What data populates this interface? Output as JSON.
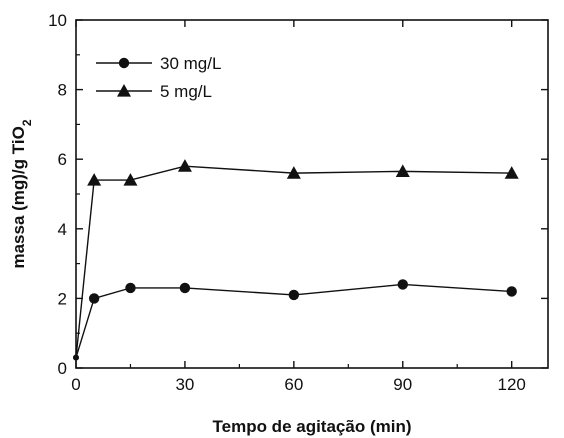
{
  "chart_data": {
    "type": "line",
    "xlabel": "Tempo de agitação (min)",
    "ylabel_main": "massa (mg)/g TiO",
    "ylabel_sub": "2",
    "xlim": [
      0,
      130
    ],
    "ylim": [
      0,
      10
    ],
    "xticks": [
      0,
      30,
      60,
      90,
      120
    ],
    "yticks": [
      0,
      2,
      4,
      6,
      8,
      10
    ],
    "legend_position": "top-left",
    "series": [
      {
        "name": "30 mg/L",
        "marker": "circle",
        "x": [
          0,
          5,
          15,
          30,
          60,
          90,
          120
        ],
        "y": [
          0.3,
          2.0,
          2.3,
          2.3,
          2.1,
          2.4,
          2.2
        ]
      },
      {
        "name": "5 mg/L",
        "marker": "triangle",
        "x": [
          0,
          5,
          15,
          30,
          60,
          90,
          120
        ],
        "y": [
          0.3,
          5.4,
          5.4,
          5.8,
          5.6,
          5.65,
          5.6
        ]
      }
    ]
  }
}
